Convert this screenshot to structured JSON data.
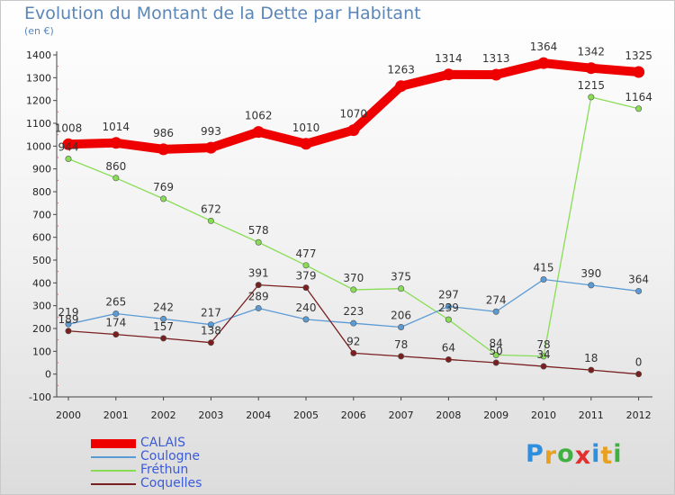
{
  "header": {
    "title": "Evolution du Montant de la Dette par Habitant",
    "unit": "(en €)"
  },
  "chart_data": {
    "type": "line",
    "title": "Evolution du Montant de la Dette par Habitant",
    "ylabel": "(en €)",
    "xlabel": "",
    "x": [
      "2000",
      "2001",
      "2002",
      "2003",
      "2004",
      "2005",
      "2006",
      "2007",
      "2008",
      "2009",
      "2010",
      "2011",
      "2012"
    ],
    "ylim": [
      -100,
      1400
    ],
    "yticks": [
      "-100",
      "0",
      "100",
      "200",
      "300",
      "400",
      "500",
      "600",
      "700",
      "800",
      "900",
      "1000",
      "1100",
      "1200",
      "1300",
      "1400"
    ],
    "grid": false,
    "legend_position": "bottom-left",
    "series": [
      {
        "name": "CALAIS",
        "color": "#ee0000",
        "values": [
          1008,
          1014,
          986,
          993,
          1062,
          1010,
          1070,
          1263,
          1314,
          1313,
          1364,
          1342,
          1325
        ]
      },
      {
        "name": "Coulogne",
        "color": "#5b9bd5",
        "values": [
          219,
          265,
          242,
          217,
          289,
          240,
          223,
          206,
          297,
          274,
          415,
          390,
          364
        ]
      },
      {
        "name": "Fréthun",
        "color": "#88dd55",
        "values": [
          944,
          860,
          769,
          672,
          578,
          477,
          370,
          375,
          239,
          84,
          78,
          1215,
          1164
        ]
      },
      {
        "name": "Coquelles",
        "color": "#7a1f1f",
        "values": [
          189,
          174,
          157,
          138,
          391,
          379,
          92,
          78,
          64,
          50,
          34,
          18,
          0
        ]
      }
    ]
  },
  "logo": {
    "letters": [
      "P",
      "r",
      "o",
      "x",
      "i",
      "t",
      "i"
    ],
    "colors": [
      "#2f8fdf",
      "#e8a020",
      "#40b040",
      "#e03030",
      "#2f8fdf",
      "#e8a020",
      "#40b040"
    ]
  }
}
